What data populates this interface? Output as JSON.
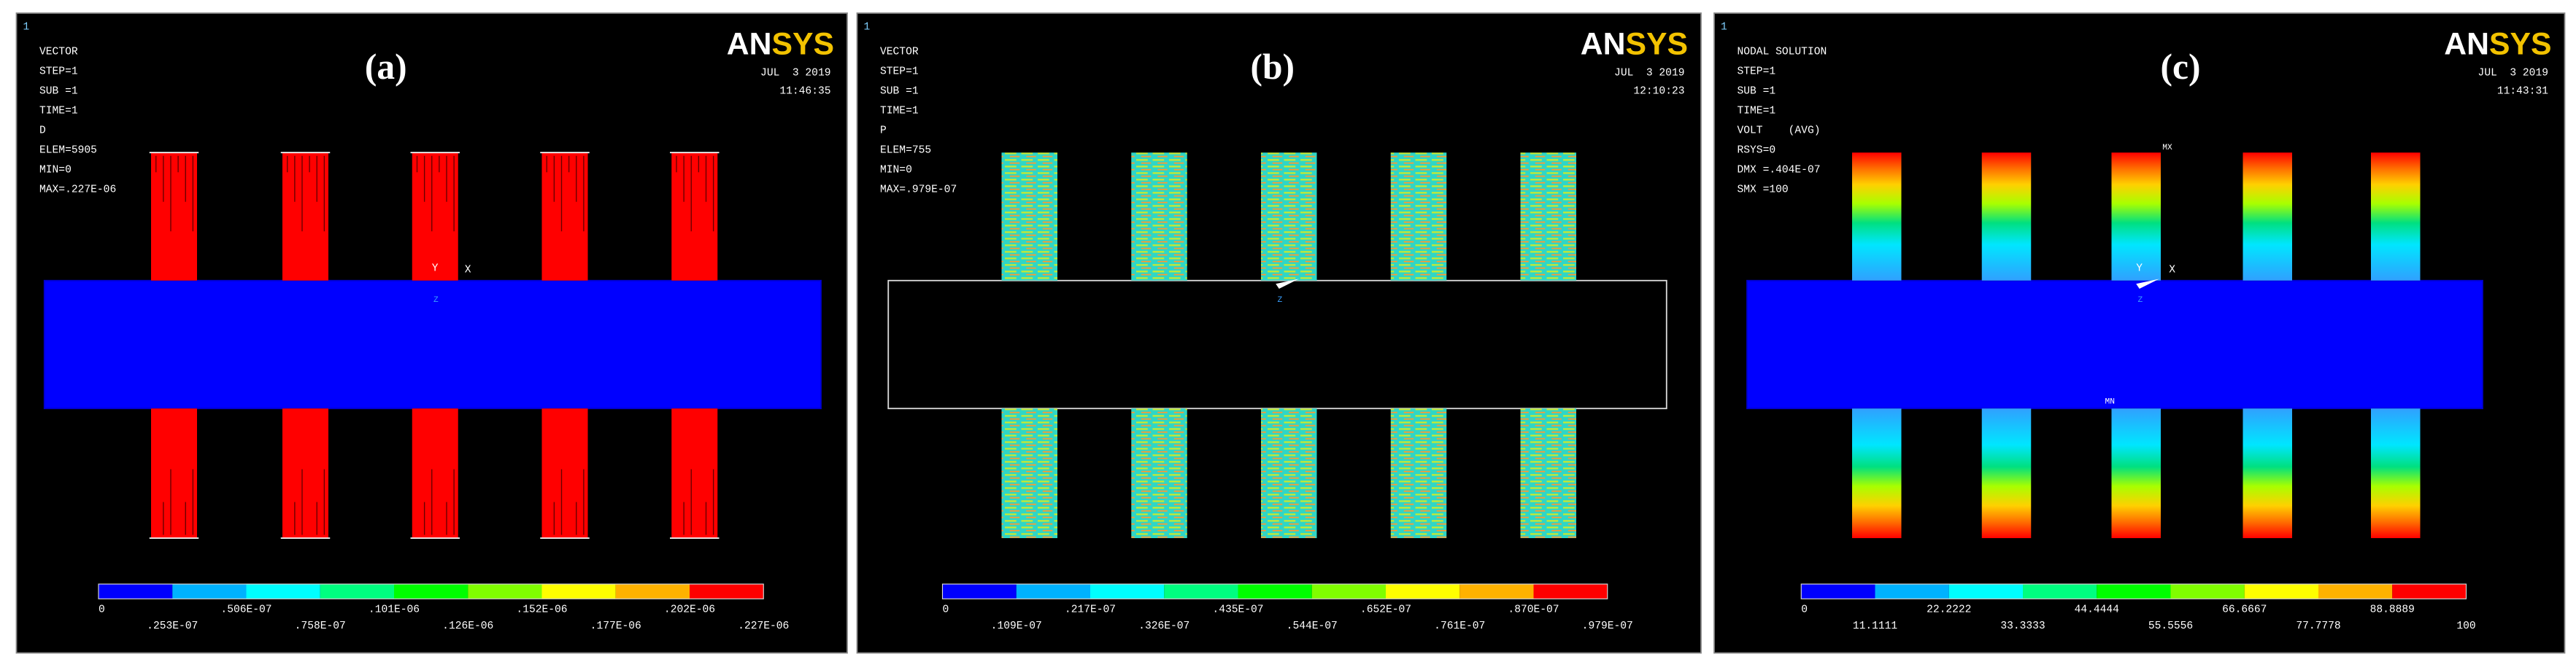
{
  "panels": [
    {
      "label": "(a)",
      "window_number": "1",
      "logo": "ANSYS",
      "header_lines": [
        "VECTOR",
        "STEP=1",
        "SUB =1",
        "TIME=1",
        "D",
        "ELEM=5905",
        "MIN=0",
        "MAX=.227E-06"
      ],
      "date": "JUL  3 2019",
      "time": "11:46:35",
      "triad": [
        "Y",
        "X",
        "Z"
      ],
      "colorbar_labels": [
        "0",
        ".253E-07",
        ".506E-07",
        ".758E-07",
        ".101E-06",
        ".126E-06",
        ".152E-06",
        ".177E-06",
        ".202E-06",
        ".227E-06"
      ]
    },
    {
      "label": "(b)",
      "window_number": "1",
      "logo": "ANSYS",
      "header_lines": [
        "VECTOR",
        "STEP=1",
        "SUB =1",
        "TIME=1",
        "P",
        "ELEM=755",
        "MIN=0",
        "MAX=.979E-07"
      ],
      "date": "JUL  3 2019",
      "time": "12:10:23",
      "triad": [
        "Z"
      ],
      "colorbar_labels": [
        "0",
        ".109E-07",
        ".217E-07",
        ".326E-07",
        ".435E-07",
        ".544E-07",
        ".652E-07",
        ".761E-07",
        ".870E-07",
        ".979E-07"
      ]
    },
    {
      "label": "(c)",
      "window_number": "1",
      "logo": "ANSYS",
      "header_lines": [
        "NODAL SOLUTION",
        "STEP=1",
        "SUB =1",
        "TIME=1",
        "VOLT    (AVG)",
        "RSYS=0",
        "DMX =.404E-07",
        "SMX =100"
      ],
      "date": "JUL  3 2019",
      "time": "11:43:31",
      "triad": [
        "Y",
        "X",
        "Z"
      ],
      "markers": [
        "MX",
        "MN"
      ],
      "colorbar_labels": [
        "0",
        "11.1111",
        "22.2222",
        "33.3333",
        "44.4444",
        "55.5556",
        "66.6667",
        "77.7778",
        "88.8889",
        "100"
      ]
    }
  ]
}
